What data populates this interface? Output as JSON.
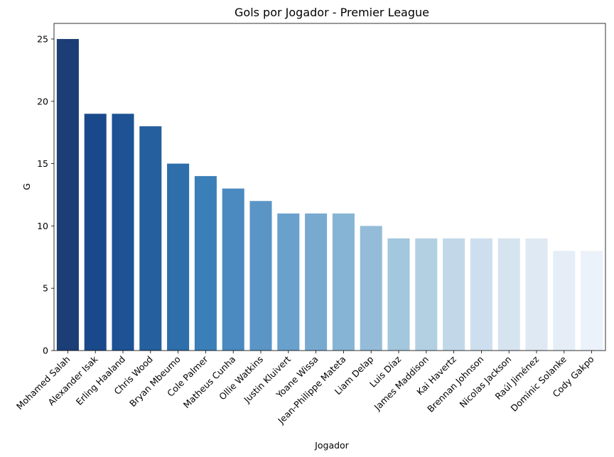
{
  "chart_data": {
    "type": "bar",
    "title": "Gols por Jogador - Premier League",
    "xlabel": "Jogador",
    "ylabel": "G",
    "ylim": [
      0,
      26.25
    ],
    "yticks": [
      0,
      5,
      10,
      15,
      20,
      25
    ],
    "grid": false,
    "categories": [
      "Mohamed Salah",
      "Alexander Isak",
      "Erling Haaland",
      "Chris Wood",
      "Bryan Mbeumo",
      "Cole Palmer",
      "Matheus Cunha",
      "Ollie Watkins",
      "Justin Kluivert",
      "Yoane Wissa",
      "Jean-Philippe Mateta",
      "Liam Delap",
      "Luis Díaz",
      "James Maddison",
      "Kai Havertz",
      "Brennan Johnson",
      "Nicolas Jackson",
      "Raúl Jiménez",
      "Dominic Solanke",
      "Cody Gakpo"
    ],
    "values": [
      25,
      19,
      19,
      18,
      15,
      14,
      13,
      12,
      11,
      11,
      11,
      10,
      9,
      9,
      9,
      9,
      9,
      9,
      8,
      8
    ],
    "colors": [
      "#1a3e75",
      "#19498a",
      "#1d5294",
      "#255f9e",
      "#2d6eab",
      "#3b7fb8",
      "#4a8ac0",
      "#5a95c6",
      "#6aa0cc",
      "#78aad0",
      "#86b4d5",
      "#94bcd8",
      "#a3c7dd",
      "#b3d0e3",
      "#c2d8e9",
      "#cddfee",
      "#d6e4f0",
      "#dee9f4",
      "#e5eef7",
      "#ecf2fa"
    ]
  }
}
